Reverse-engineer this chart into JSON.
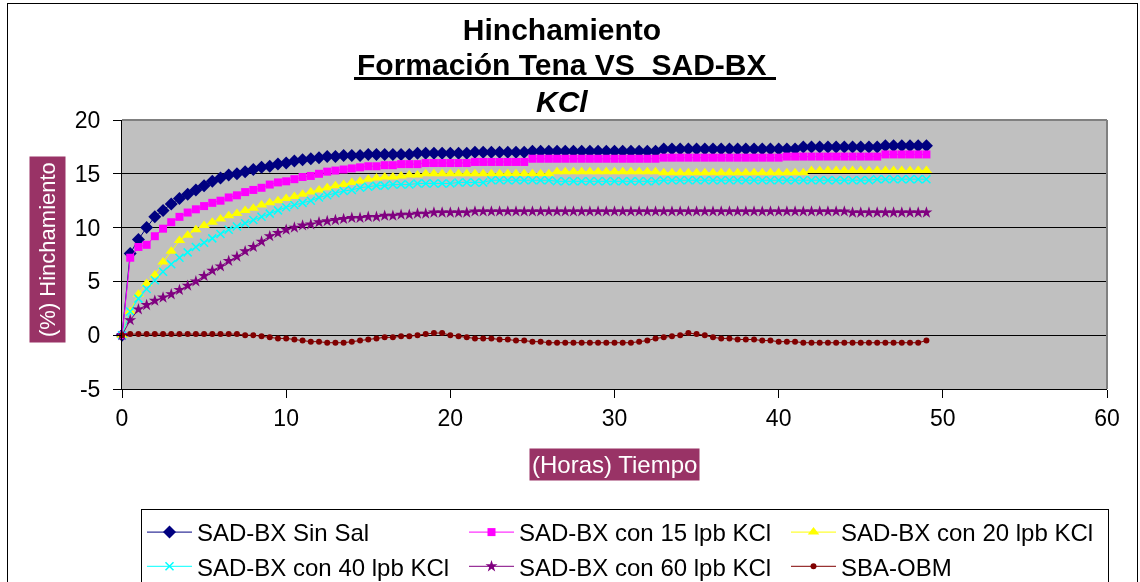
{
  "chart_data": {
    "type": "line",
    "title": "Hinchamiento",
    "subtitle": "Formación Tena VS  SAD-BX\nKCl",
    "xlabel": "(Horas) Tiempo",
    "ylabel": "(%) Hinchamiento",
    "x": [
      0,
      0.5,
      1,
      1.5,
      2,
      2.5,
      3,
      3.5,
      4,
      4.5,
      5,
      5.5,
      6,
      6.5,
      7,
      7.5,
      8,
      8.5,
      9,
      9.5,
      10,
      10.5,
      11,
      11.5,
      12,
      12.5,
      13,
      13.5,
      14,
      14.5,
      15,
      15.5,
      16,
      16.5,
      17,
      17.5,
      18,
      18.5,
      19,
      19.5,
      20,
      20.5,
      21,
      21.5,
      22,
      22.5,
      23,
      23.5,
      24,
      24.5,
      25,
      25.5,
      26,
      26.5,
      27,
      27.5,
      28,
      28.5,
      29,
      29.5,
      30,
      30.5,
      31,
      31.5,
      32,
      32.5,
      33,
      33.5,
      34,
      34.5,
      35,
      35.5,
      36,
      36.5,
      37,
      37.5,
      38,
      38.5,
      39,
      39.5,
      40,
      40.5,
      41,
      41.5,
      42,
      42.5,
      43,
      43.5,
      44,
      44.5,
      45,
      45.5,
      46,
      46.5,
      47,
      47.5,
      48,
      48.5,
      49
    ],
    "series": [
      {
        "name": "SAD-BX Sin Sal",
        "color": "#000080",
        "marker": "diamond",
        "values": [
          0,
          7.6,
          8.9,
          10.0,
          11.0,
          11.6,
          12.2,
          12.7,
          13.1,
          13.5,
          13.9,
          14.3,
          14.6,
          14.9,
          15.0,
          15.2,
          15.4,
          15.6,
          15.7,
          15.9,
          16.0,
          16.2,
          16.3,
          16.4,
          16.5,
          16.6,
          16.6,
          16.7,
          16.7,
          16.7,
          16.8,
          16.8,
          16.8,
          16.8,
          16.8,
          16.8,
          16.9,
          16.9,
          16.9,
          16.9,
          16.9,
          16.9,
          16.9,
          17.0,
          17.0,
          17.0,
          17.0,
          17.0,
          17.0,
          17.0,
          17.1,
          17.1,
          17.1,
          17.1,
          17.1,
          17.1,
          17.1,
          17.1,
          17.1,
          17.1,
          17.1,
          17.1,
          17.1,
          17.1,
          17.1,
          17.1,
          17.3,
          17.3,
          17.3,
          17.3,
          17.3,
          17.3,
          17.3,
          17.3,
          17.3,
          17.3,
          17.3,
          17.3,
          17.3,
          17.3,
          17.3,
          17.3,
          17.3,
          17.5,
          17.5,
          17.5,
          17.5,
          17.5,
          17.5,
          17.5,
          17.5,
          17.5,
          17.5,
          17.6,
          17.6,
          17.6,
          17.6,
          17.6,
          17.6
        ]
      },
      {
        "name": "SAD-BX con 15 lpb KCl",
        "color": "#ff00ff",
        "marker": "square",
        "values": [
          0,
          7.2,
          8.2,
          8.4,
          9.2,
          9.9,
          10.5,
          11.0,
          11.4,
          11.7,
          12.0,
          12.3,
          12.5,
          12.8,
          13.0,
          13.3,
          13.5,
          13.7,
          14.0,
          14.2,
          14.3,
          14.5,
          14.7,
          14.8,
          15.0,
          15.2,
          15.3,
          15.4,
          15.5,
          15.6,
          15.7,
          15.7,
          15.8,
          15.8,
          15.9,
          15.9,
          15.9,
          16.0,
          16.0,
          16.0,
          16.0,
          16.0,
          16.0,
          16.1,
          16.1,
          16.1,
          16.1,
          16.1,
          16.1,
          16.1,
          16.4,
          16.4,
          16.4,
          16.4,
          16.4,
          16.4,
          16.4,
          16.4,
          16.4,
          16.4,
          16.4,
          16.4,
          16.4,
          16.4,
          16.4,
          16.4,
          16.5,
          16.5,
          16.5,
          16.5,
          16.5,
          16.5,
          16.5,
          16.5,
          16.5,
          16.5,
          16.5,
          16.5,
          16.5,
          16.5,
          16.5,
          16.6,
          16.6,
          16.6,
          16.6,
          16.6,
          16.6,
          16.6,
          16.6,
          16.6,
          16.6,
          16.6,
          16.6,
          16.8,
          16.8,
          16.8,
          16.8,
          16.8,
          16.8
        ]
      },
      {
        "name": "SAD-BX con 20 lpb KCl",
        "color": "#ffff00",
        "marker": "triangle",
        "values": [
          0,
          2.2,
          3.8,
          4.8,
          5.6,
          6.8,
          7.8,
          8.8,
          9.3,
          9.8,
          10.2,
          10.5,
          10.8,
          11.1,
          11.3,
          11.6,
          11.8,
          12.1,
          12.3,
          12.5,
          12.7,
          12.9,
          13.1,
          13.3,
          13.5,
          13.7,
          13.9,
          14.0,
          14.2,
          14.3,
          14.5,
          14.6,
          14.7,
          14.7,
          14.8,
          14.9,
          14.9,
          15.0,
          15.0,
          15.0,
          15.0,
          15.0,
          15.0,
          15.0,
          15.0,
          15.0,
          15.0,
          15.0,
          15.0,
          15.0,
          15.0,
          15.0,
          15.0,
          15.2,
          15.2,
          15.2,
          15.2,
          15.2,
          15.2,
          15.2,
          15.2,
          15.2,
          15.2,
          15.2,
          15.2,
          15.2,
          15.1,
          15.1,
          15.1,
          15.1,
          15.1,
          15.1,
          15.1,
          15.1,
          15.1,
          15.1,
          15.1,
          15.1,
          15.1,
          15.1,
          15.1,
          15.1,
          15.1,
          15.1,
          15.3,
          15.3,
          15.3,
          15.3,
          15.3,
          15.3,
          15.3,
          15.3,
          15.3,
          15.3,
          15.3,
          15.3,
          15.3,
          15.3,
          15.3
        ]
      },
      {
        "name": "SAD-BX con 40 lpb KCl",
        "color": "#00ffff",
        "marker": "cross",
        "values": [
          0,
          2.2,
          3.4,
          4.3,
          5.1,
          5.9,
          6.6,
          7.2,
          7.7,
          8.2,
          8.6,
          9.0,
          9.4,
          9.8,
          10.1,
          10.4,
          10.7,
          11.0,
          11.3,
          11.6,
          11.9,
          12.1,
          12.3,
          12.5,
          12.8,
          13.0,
          13.2,
          13.4,
          13.5,
          13.7,
          13.8,
          13.9,
          13.9,
          14.0,
          14.0,
          14.0,
          14.1,
          14.1,
          14.1,
          14.1,
          14.1,
          14.2,
          14.2,
          14.2,
          14.2,
          14.4,
          14.4,
          14.4,
          14.4,
          14.4,
          14.4,
          14.4,
          14.4,
          14.3,
          14.3,
          14.3,
          14.3,
          14.3,
          14.3,
          14.3,
          14.3,
          14.3,
          14.3,
          14.3,
          14.3,
          14.3,
          14.4,
          14.4,
          14.4,
          14.4,
          14.4,
          14.4,
          14.4,
          14.4,
          14.4,
          14.4,
          14.4,
          14.4,
          14.4,
          14.4,
          14.4,
          14.4,
          14.4,
          14.4,
          14.4,
          14.4,
          14.4,
          14.4,
          14.4,
          14.4,
          14.4,
          14.4,
          14.5,
          14.5,
          14.5,
          14.5,
          14.5,
          14.5,
          14.5
        ]
      },
      {
        "name": "SAD-BX con 60 lpb KCl",
        "color": "#800080",
        "marker": "star",
        "values": [
          0,
          1.4,
          2.4,
          2.8,
          3.2,
          3.5,
          3.8,
          4.2,
          4.6,
          5.0,
          5.5,
          6.0,
          6.4,
          6.9,
          7.3,
          7.8,
          8.2,
          8.7,
          9.2,
          9.5,
          9.8,
          10.0,
          10.2,
          10.3,
          10.5,
          10.6,
          10.7,
          10.8,
          10.9,
          10.9,
          11.0,
          11.0,
          11.1,
          11.1,
          11.2,
          11.2,
          11.3,
          11.3,
          11.4,
          11.4,
          11.4,
          11.4,
          11.4,
          11.5,
          11.5,
          11.5,
          11.5,
          11.5,
          11.5,
          11.5,
          11.5,
          11.5,
          11.5,
          11.5,
          11.5,
          11.5,
          11.5,
          11.5,
          11.5,
          11.5,
          11.5,
          11.5,
          11.5,
          11.5,
          11.5,
          11.5,
          11.5,
          11.5,
          11.5,
          11.5,
          11.5,
          11.5,
          11.5,
          11.5,
          11.5,
          11.5,
          11.5,
          11.5,
          11.5,
          11.5,
          11.5,
          11.5,
          11.5,
          11.5,
          11.5,
          11.5,
          11.5,
          11.5,
          11.5,
          11.4,
          11.4,
          11.4,
          11.4,
          11.4,
          11.4,
          11.4,
          11.4,
          11.4,
          11.4
        ]
      },
      {
        "name": "SBA-OBM",
        "color": "#800000",
        "marker": "circle",
        "values": [
          0,
          0.1,
          0.1,
          0.1,
          0.1,
          0.1,
          0.1,
          0.1,
          0.1,
          0.1,
          0.1,
          0.1,
          0.1,
          0.1,
          0.1,
          0.0,
          0.0,
          -0.1,
          -0.2,
          -0.3,
          -0.3,
          -0.4,
          -0.5,
          -0.6,
          -0.6,
          -0.7,
          -0.7,
          -0.7,
          -0.6,
          -0.5,
          -0.4,
          -0.3,
          -0.2,
          -0.2,
          -0.1,
          -0.1,
          0.0,
          0.1,
          0.2,
          0.2,
          0.0,
          -0.1,
          -0.2,
          -0.3,
          -0.3,
          -0.3,
          -0.4,
          -0.4,
          -0.5,
          -0.5,
          -0.6,
          -0.6,
          -0.7,
          -0.7,
          -0.7,
          -0.7,
          -0.7,
          -0.7,
          -0.7,
          -0.7,
          -0.7,
          -0.7,
          -0.7,
          -0.6,
          -0.5,
          -0.3,
          -0.2,
          -0.1,
          0.0,
          0.2,
          0.1,
          0.0,
          -0.2,
          -0.3,
          -0.3,
          -0.4,
          -0.4,
          -0.4,
          -0.5,
          -0.5,
          -0.6,
          -0.6,
          -0.6,
          -0.7,
          -0.7,
          -0.7,
          -0.7,
          -0.7,
          -0.7,
          -0.7,
          -0.7,
          -0.7,
          -0.7,
          -0.7,
          -0.7,
          -0.7,
          -0.7,
          -0.7,
          -0.5
        ]
      }
    ],
    "xlim": [
      0,
      60
    ],
    "xticks": [
      0,
      10,
      20,
      30,
      40,
      50,
      60
    ],
    "ylim": [
      -5,
      20
    ],
    "yticks": [
      -5,
      0,
      5,
      10,
      15,
      20
    ],
    "grid": "y",
    "legend": "bottom",
    "line_style": "solid"
  }
}
